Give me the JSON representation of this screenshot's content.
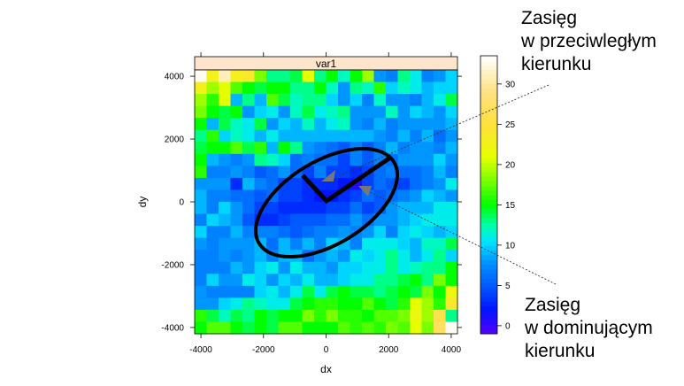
{
  "chart_data": {
    "type": "heatmap",
    "strip_label": "var1",
    "xlabel": "dx",
    "ylabel": "dy",
    "xlim": [
      -4200,
      4200
    ],
    "ylim": [
      -4200,
      4200
    ],
    "x_ticks": [
      -4000,
      -2000,
      0,
      2000,
      4000
    ],
    "y_ticks": [
      -4000,
      -2000,
      0,
      2000,
      4000
    ],
    "colorbar": {
      "range": [
        -1,
        33.5
      ],
      "ticks": [
        0,
        5,
        10,
        15,
        20,
        25,
        30
      ]
    },
    "grid_rows_top_to_bottom": [
      [
        33,
        23,
        31,
        23,
        24,
        18,
        13,
        13,
        14,
        21,
        13,
        15,
        12,
        15,
        19,
        8,
        7,
        13,
        11,
        7,
        8,
        10
      ],
      [
        23,
        19,
        21,
        17,
        15,
        14,
        15,
        15,
        13,
        13,
        15,
        12,
        8,
        13,
        12,
        16,
        10,
        12,
        11,
        9,
        10,
        10
      ],
      [
        19,
        16,
        21,
        9,
        13,
        9,
        17,
        14,
        12,
        13,
        13,
        10,
        8,
        10,
        7,
        12,
        8,
        8,
        7,
        9,
        11,
        14
      ],
      [
        18,
        15,
        14,
        15,
        8,
        10,
        11,
        8,
        12,
        14,
        11,
        12,
        13,
        8,
        8,
        8,
        12,
        8,
        10,
        9,
        8,
        10
      ],
      [
        15,
        9,
        14,
        12,
        11,
        14,
        8,
        10,
        9,
        12,
        9,
        11,
        12,
        8,
        7,
        9,
        7,
        8,
        8,
        8,
        8,
        9
      ],
      [
        13,
        16,
        10,
        12,
        11,
        9,
        11,
        9,
        9,
        9,
        9,
        9,
        9,
        9,
        9,
        8,
        7,
        9,
        7,
        9,
        6,
        8
      ],
      [
        14,
        15,
        15,
        17,
        14,
        16,
        9,
        15,
        13,
        8,
        7,
        6,
        5,
        7,
        5,
        7,
        9,
        7,
        8,
        8,
        7,
        9
      ],
      [
        15,
        9,
        8,
        7,
        8,
        13,
        12,
        10,
        6,
        7,
        6,
        6,
        4,
        7,
        5,
        7,
        6,
        8,
        8,
        8,
        10,
        8
      ],
      [
        16,
        7,
        7,
        8,
        7,
        5,
        6,
        8,
        6,
        4,
        7,
        4,
        4,
        3,
        4,
        6,
        7,
        6,
        6,
        7,
        9,
        7
      ],
      [
        8,
        8,
        8,
        3,
        9,
        7,
        6,
        4,
        4,
        3,
        3,
        3,
        2,
        1,
        4,
        6,
        5,
        4,
        6,
        7,
        8,
        11
      ],
      [
        9,
        7,
        7,
        6,
        6,
        5,
        6,
        4,
        4,
        3,
        2,
        2,
        3,
        4,
        6,
        5,
        6,
        7,
        8,
        10,
        9,
        8
      ],
      [
        9,
        7,
        10,
        8,
        6,
        4,
        4,
        3,
        3,
        3,
        3,
        4,
        4,
        6,
        4,
        5,
        8,
        9,
        9,
        9,
        11,
        11
      ],
      [
        7,
        10,
        9,
        8,
        5,
        3,
        3,
        4,
        5,
        5,
        5,
        6,
        6,
        8,
        6,
        8,
        8,
        9,
        10,
        11,
        11,
        11
      ],
      [
        10,
        7,
        7,
        9,
        7,
        7,
        7,
        6,
        5,
        6,
        7,
        7,
        8,
        7,
        8,
        10,
        7,
        10,
        11,
        10,
        9,
        10
      ],
      [
        8,
        7,
        8,
        8,
        8,
        9,
        6,
        9,
        7,
        9,
        7,
        10,
        9,
        7,
        11,
        11,
        11,
        10,
        9,
        12,
        12,
        14
      ],
      [
        7,
        7,
        8,
        7,
        8,
        9,
        7,
        9,
        9,
        6,
        8,
        9,
        8,
        11,
        10,
        11,
        13,
        11,
        9,
        11,
        13,
        10
      ],
      [
        7,
        7,
        7,
        9,
        8,
        10,
        11,
        8,
        11,
        9,
        9,
        8,
        10,
        10,
        11,
        11,
        13,
        11,
        12,
        13,
        13,
        15
      ],
      [
        7,
        10,
        8,
        8,
        11,
        10,
        8,
        10,
        9,
        11,
        9,
        9,
        10,
        11,
        11,
        13,
        13,
        14,
        15,
        13,
        18,
        15
      ],
      [
        8,
        7,
        7,
        7,
        7,
        10,
        11,
        9,
        11,
        14,
        11,
        14,
        15,
        14,
        14,
        13,
        14,
        15,
        14,
        18,
        15,
        22
      ],
      [
        8,
        8,
        10,
        11,
        13,
        12,
        11,
        11,
        14,
        15,
        16,
        16,
        15,
        15,
        17,
        15,
        14,
        16,
        21,
        19,
        16,
        24
      ],
      [
        16,
        14,
        12,
        14,
        13,
        15,
        14,
        15,
        15,
        18,
        16,
        18,
        16,
        16,
        15,
        17,
        17,
        18,
        22,
        19,
        26,
        13
      ],
      [
        15,
        17,
        17,
        15,
        14,
        15,
        14,
        17,
        17,
        15,
        15,
        15,
        17,
        16,
        17,
        16,
        18,
        17,
        21,
        18,
        27,
        33
      ]
    ]
  },
  "annotations": {
    "opposite": [
      "Zasięg",
      "w przeciwległym",
      "kierunku"
    ],
    "dominant": [
      "Zasięg",
      "w dominującym",
      "kierunku"
    ]
  }
}
